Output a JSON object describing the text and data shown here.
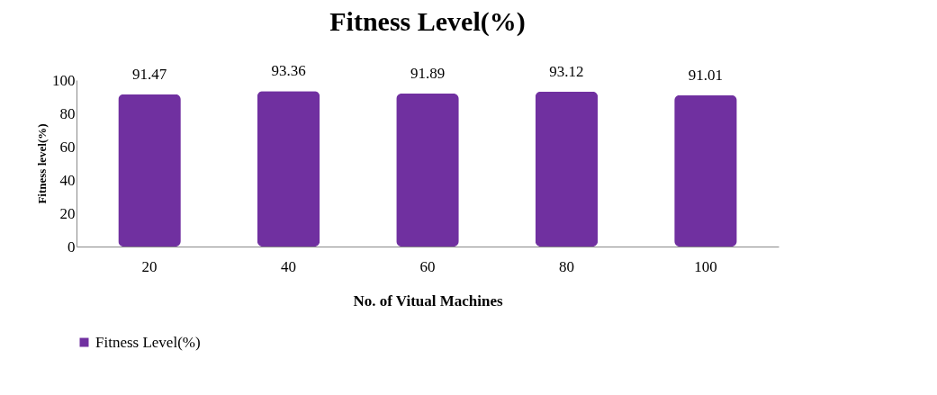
{
  "chart_data": {
    "type": "bar",
    "title": "Fitness Level(%)",
    "xlabel": "No. of Vitual Machines",
    "ylabel": "Fitness level(%)",
    "categories": [
      "20",
      "40",
      "60",
      "80",
      "100"
    ],
    "series": [
      {
        "name": "Fitness Level(%)",
        "color": "#7030a0",
        "values": [
          91.47,
          93.36,
          91.89,
          93.12,
          91.01
        ]
      }
    ],
    "ylim": [
      0,
      100
    ],
    "yticks": [
      0,
      20,
      40,
      60,
      80,
      100
    ],
    "grid": false,
    "legend": "bottom",
    "data_labels": true
  }
}
